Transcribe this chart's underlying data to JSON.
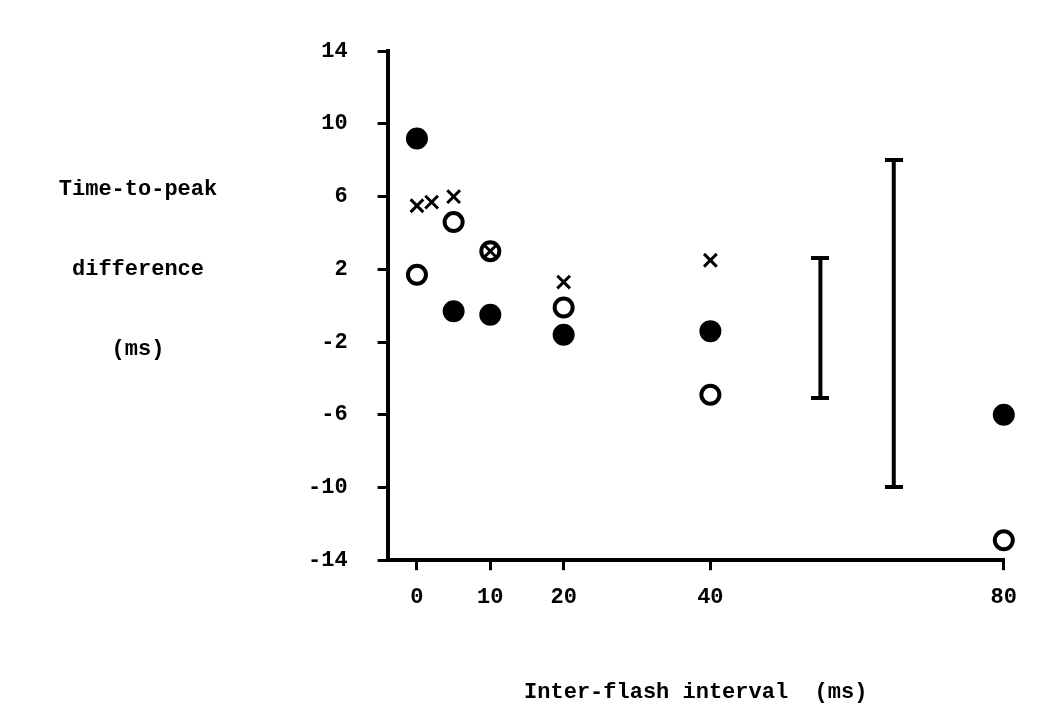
{
  "chart_data": {
    "type": "scatter",
    "xlabel": "Inter-flash interval  (ms)",
    "ylabel": "Time-to-peak difference (ms)",
    "xlim": [
      -4,
      80
    ],
    "xticks": [
      0,
      10,
      20,
      40,
      80
    ],
    "ylim": [
      -14,
      14
    ],
    "yticks": [
      -14,
      -10,
      -6,
      -2,
      2,
      6,
      10,
      14
    ],
    "legend": false,
    "series": [
      {
        "color": "#000000",
        "marker": "circle",
        "x": [
          0,
          5,
          10,
          20,
          40,
          80
        ],
        "values": [
          9.2,
          -0.3,
          -0.5,
          -1.6,
          -1.4,
          -6.0
        ]
      },
      {
        "color": "#ffffff",
        "marker": "circle",
        "x": [
          0,
          5,
          10,
          20,
          40,
          80
        ],
        "values": [
          1.7,
          4.6,
          3.0,
          -0.1,
          -4.9,
          -12.9
        ]
      },
      {
        "color": "#000000",
        "marker": "cross",
        "x": [
          0,
          2,
          5,
          10,
          20,
          40
        ],
        "values": [
          5.5,
          5.7,
          6.0,
          3.0,
          1.3,
          2.5
        ]
      },
      {
        "type": "line",
        "color": "#000000",
        "marker": "none",
        "x": [
          55,
          55
        ],
        "values": [
          -5.1,
          2.6
        ]
      },
      {
        "type": "line",
        "color": "#000000",
        "marker": "none",
        "x": [
          65,
          65
        ],
        "values": [
          -10,
          8
        ]
      }
    ]
  }
}
